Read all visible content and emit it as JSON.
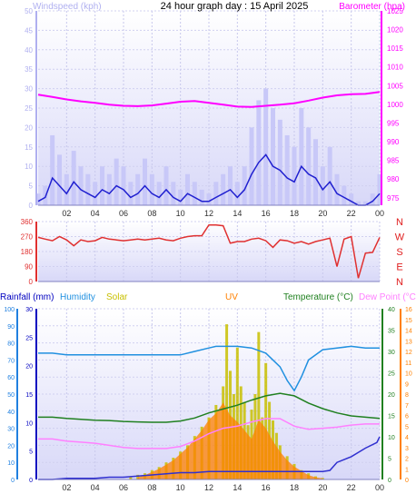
{
  "title": "24 hour graph day : 15 April 2025",
  "colors": {
    "wind_axis": "#b0b0f0",
    "wind_avg": "#2020d0",
    "gust_bars": "#c8c8f8",
    "barometer": "#ff00ff",
    "direction": "#e03030",
    "direction_labels": "#e02020",
    "rain_axis": "#2080e0",
    "rain_label": "#0000c0",
    "humidity": "#2090e0",
    "solar": "#c8c000",
    "uv": "#ff8000",
    "temperature": "#208020",
    "dewpoint": "#ff80ff",
    "plot_bg_top": "#ffffff",
    "plot_bg_bottom": "#d8d8f8"
  },
  "chart_data": [
    {
      "type": "line",
      "title": "",
      "left_axis_label": "Windspeed (kph)",
      "right_axis_label": "Barometer (hpa)",
      "x_tick_labels": [
        "02",
        "04",
        "06",
        "08",
        "10",
        "12",
        "14",
        "16",
        "18",
        "20",
        "22",
        "00"
      ],
      "x_tick_hours": [
        2,
        4,
        6,
        8,
        10,
        12,
        14,
        16,
        18,
        20,
        22,
        24
      ],
      "y_left_ticks": [
        0,
        5,
        10,
        15,
        20,
        25,
        30,
        35,
        40,
        45,
        50
      ],
      "ylim_left": [
        0,
        50
      ],
      "y_right_ticks": [
        975,
        980,
        985,
        990,
        995,
        1000,
        1005,
        1010,
        1015,
        1020,
        1025
      ],
      "ylim_right": [
        973,
        1025
      ],
      "grid": true,
      "series": [
        {
          "name": "Windspeed (kph)",
          "axis": "left",
          "kind": "line",
          "x": [
            0,
            0.5,
            1,
            1.5,
            2,
            2.5,
            3,
            3.5,
            4,
            4.5,
            5,
            5.5,
            6,
            6.5,
            7,
            7.5,
            8,
            8.5,
            9,
            9.5,
            10,
            10.5,
            11,
            11.5,
            12,
            12.5,
            13,
            13.5,
            14,
            14.5,
            15,
            15.5,
            16,
            16.5,
            17,
            17.5,
            18,
            18.5,
            19,
            19.5,
            20,
            20.5,
            21,
            21.5,
            22,
            22.5,
            23,
            23.5,
            24
          ],
          "values": [
            1,
            2,
            7,
            5,
            3,
            6,
            4,
            3,
            2,
            4,
            3,
            5,
            4,
            2,
            3,
            5,
            3,
            2,
            4,
            2,
            1,
            3,
            2,
            1,
            1,
            2,
            3,
            4,
            2,
            4,
            8,
            11,
            13,
            10,
            9,
            7,
            6,
            10,
            8,
            7,
            4,
            6,
            3,
            2,
            1,
            0,
            0,
            1,
            3
          ]
        },
        {
          "name": "Gust",
          "axis": "left",
          "kind": "area",
          "x": [
            0,
            0.5,
            1,
            1.5,
            2,
            2.5,
            3,
            3.5,
            4,
            4.5,
            5,
            5.5,
            6,
            6.5,
            7,
            7.5,
            8,
            8.5,
            9,
            9.5,
            10,
            10.5,
            11,
            11.5,
            12,
            12.5,
            13,
            13.5,
            14,
            14.5,
            15,
            15.5,
            16,
            16.5,
            17,
            17.5,
            18,
            18.5,
            19,
            19.5,
            20,
            20.5,
            21,
            21.5,
            22,
            22.5,
            23,
            23.5,
            24
          ],
          "values": [
            3,
            5,
            18,
            13,
            8,
            14,
            10,
            8,
            6,
            10,
            8,
            12,
            10,
            6,
            8,
            12,
            8,
            6,
            10,
            6,
            4,
            8,
            6,
            4,
            3,
            6,
            8,
            10,
            6,
            10,
            20,
            27,
            30,
            25,
            22,
            18,
            15,
            25,
            20,
            17,
            10,
            15,
            8,
            5,
            3,
            1,
            1,
            3,
            8
          ]
        },
        {
          "name": "Barometer (hpa)",
          "axis": "right",
          "kind": "line",
          "x": [
            0,
            1,
            2,
            3,
            4,
            5,
            6,
            7,
            8,
            9,
            10,
            11,
            12,
            13,
            14,
            15,
            16,
            17,
            18,
            19,
            20,
            21,
            22,
            23,
            24
          ],
          "values": [
            1002.6,
            1002.0,
            1001.3,
            1000.8,
            1000.4,
            999.9,
            999.6,
            999.5,
            999.7,
            1000.2,
            1000.7,
            1000.9,
            1000.4,
            999.9,
            999.4,
            999.3,
            999.6,
            999.9,
            1000.3,
            1001.0,
            1001.8,
            1002.4,
            1002.7,
            1002.8,
            1003.3
          ]
        }
      ]
    },
    {
      "type": "line",
      "title": "",
      "x_tick_hours": [
        2,
        4,
        6,
        8,
        10,
        12,
        14,
        16,
        18,
        20,
        22,
        24
      ],
      "y_ticks": [
        0,
        90,
        180,
        270,
        360
      ],
      "ylim": [
        0,
        360
      ],
      "direction_labels": [
        "N",
        "W",
        "S",
        "E",
        "N"
      ],
      "series": [
        {
          "name": "Wind direction",
          "kind": "line",
          "x": [
            0,
            0.5,
            1,
            1.5,
            2,
            2.5,
            3,
            3.5,
            4,
            4.5,
            5,
            5.5,
            6,
            6.5,
            7,
            7.5,
            8,
            8.5,
            9,
            9.5,
            10,
            10.5,
            11,
            11.5,
            12,
            12.5,
            13,
            13.5,
            14,
            14.5,
            15,
            15.5,
            16,
            16.5,
            17,
            17.5,
            18,
            18.5,
            19,
            19.5,
            20,
            20.5,
            21,
            21.5,
            22,
            22.5,
            23,
            23.5,
            24
          ],
          "values": [
            265,
            255,
            245,
            270,
            250,
            215,
            250,
            240,
            245,
            265,
            255,
            250,
            245,
            250,
            255,
            250,
            255,
            260,
            250,
            245,
            260,
            270,
            275,
            275,
            340,
            340,
            335,
            230,
            240,
            240,
            255,
            260,
            245,
            205,
            250,
            245,
            230,
            240,
            225,
            240,
            250,
            260,
            90,
            255,
            270,
            20,
            170,
            175,
            265
          ]
        }
      ]
    },
    {
      "type": "line",
      "title": "",
      "x_tick_labels": [
        "02",
        "04",
        "06",
        "08",
        "10",
        "12",
        "14",
        "16",
        "18",
        "20",
        "22",
        "00"
      ],
      "x_tick_hours": [
        2,
        4,
        6,
        8,
        10,
        12,
        14,
        16,
        18,
        20,
        22,
        24
      ],
      "axes": {
        "rainfall": {
          "label": "Rainfall (mm)",
          "ticks": [
            0,
            5,
            10,
            15,
            20,
            25,
            30
          ]
        },
        "humidity": {
          "label": "Humidity",
          "ticks": [
            0,
            10,
            20,
            30,
            40,
            50,
            60,
            70,
            80,
            90,
            100
          ]
        },
        "solar": {
          "label": "Solar"
        },
        "uv": {
          "label": "UV"
        },
        "temperature": {
          "label": "Temperature (°C)",
          "ticks": [
            0,
            5,
            10,
            15,
            20,
            25,
            30,
            35,
            40
          ]
        },
        "dewpoint": {
          "label": "Dew Point (°C)",
          "ticks": [
            0,
            1,
            2,
            3,
            4,
            5,
            6,
            7,
            8,
            9,
            10,
            11,
            12,
            13,
            14,
            15,
            16
          ]
        }
      },
      "series": [
        {
          "name": "Humidity",
          "axis": "humidity",
          "kind": "line",
          "x": [
            0,
            1,
            2,
            3,
            4,
            5,
            6,
            7,
            8,
            9,
            10,
            11,
            12,
            12.5,
            13,
            14,
            15,
            16,
            16.5,
            17,
            17.5,
            18,
            18.5,
            19,
            20,
            21,
            22,
            23,
            24
          ],
          "values": [
            74,
            74,
            73,
            73,
            73,
            73,
            73,
            73,
            73,
            73,
            73,
            75,
            77,
            78,
            78,
            78,
            77,
            74,
            70,
            66,
            58,
            52,
            60,
            70,
            76,
            77,
            78,
            77,
            77
          ]
        },
        {
          "name": "Temperature (°C)",
          "axis": "temperature",
          "kind": "line",
          "x": [
            0,
            1,
            2,
            3,
            4,
            5,
            6,
            7,
            8,
            9,
            10,
            11,
            12,
            13,
            14,
            15,
            16,
            17,
            18,
            19,
            20,
            21,
            22,
            23,
            24
          ],
          "values": [
            14.6,
            14.6,
            14.3,
            14.1,
            13.9,
            13.8,
            13.6,
            13.5,
            13.4,
            13.4,
            13.7,
            14.4,
            15.6,
            16.5,
            17.4,
            18.6,
            19.6,
            20.2,
            19.6,
            17.9,
            16.6,
            15.6,
            14.9,
            14.6,
            14.3
          ]
        },
        {
          "name": "Dew Point (°C)",
          "axis": "dewpoint",
          "kind": "line",
          "x": [
            0,
            1,
            2,
            3,
            4,
            5,
            6,
            7,
            8,
            9,
            10,
            11,
            12,
            13,
            14,
            15,
            16,
            17,
            18,
            19,
            20,
            21,
            22,
            23,
            24
          ],
          "values": [
            3.8,
            3.8,
            3.6,
            3.5,
            3.4,
            3.2,
            3.0,
            2.9,
            2.9,
            2.9,
            3.1,
            3.6,
            4.3,
            4.8,
            5.0,
            5.4,
            5.7,
            5.7,
            5.0,
            4.7,
            4.8,
            4.9,
            5.1,
            5.2,
            5.2
          ]
        },
        {
          "name": "Rainfall (mm)",
          "axis": "rainfall",
          "kind": "line",
          "x": [
            0,
            1,
            2,
            3,
            4,
            5,
            6,
            7,
            8,
            9,
            10,
            11,
            12,
            13,
            14,
            15,
            16,
            17,
            18,
            19,
            20,
            20.5,
            21,
            22,
            23,
            23.8,
            24
          ],
          "values": [
            0,
            0,
            0.2,
            0.2,
            0.2,
            0.4,
            0.4,
            0.6,
            0.8,
            1.0,
            1.2,
            1.2,
            1.4,
            1.4,
            1.4,
            1.4,
            1.4,
            1.4,
            1.4,
            1.4,
            1.4,
            1.6,
            3.0,
            4.0,
            5.5,
            6.5,
            7.5
          ]
        },
        {
          "name": "Solar",
          "axis": "solar",
          "kind": "bars",
          "x": [
            6.5,
            7,
            7.5,
            8,
            8.5,
            9,
            9.5,
            10,
            10.5,
            11,
            11.5,
            12,
            12.5,
            13,
            13.25,
            13.5,
            13.75,
            14,
            14.25,
            14.5,
            14.75,
            15,
            15.25,
            15.5,
            15.75,
            16,
            16.25,
            16.5,
            16.75,
            17,
            17.5,
            18,
            18.5,
            19,
            19.5,
            20
          ],
          "values": [
            2,
            3,
            4,
            6,
            8,
            11,
            14,
            18,
            22,
            28,
            34,
            40,
            48,
            60,
            100,
            70,
            55,
            85,
            60,
            50,
            35,
            45,
            55,
            95,
            40,
            75,
            50,
            38,
            30,
            22,
            15,
            10,
            6,
            4,
            2,
            1
          ]
        },
        {
          "name": "UV",
          "axis": "uv",
          "kind": "area",
          "x": [
            7,
            7.5,
            8,
            8.5,
            9,
            9.5,
            10,
            10.5,
            11,
            11.5,
            12,
            12.5,
            13,
            13.5,
            14,
            14.5,
            15,
            15.5,
            16,
            16.5,
            17,
            17.5,
            18,
            18.5,
            19,
            19.5,
            20
          ],
          "values": [
            0.2,
            0.4,
            0.7,
            1.0,
            1.4,
            1.8,
            2.4,
            3.0,
            3.8,
            4.6,
            5.6,
            6.2,
            7.2,
            6.0,
            5.4,
            4.6,
            3.8,
            5.6,
            4.8,
            3.6,
            2.6,
            1.8,
            1.2,
            0.8,
            0.4,
            0.2,
            0.1
          ]
        }
      ]
    }
  ]
}
